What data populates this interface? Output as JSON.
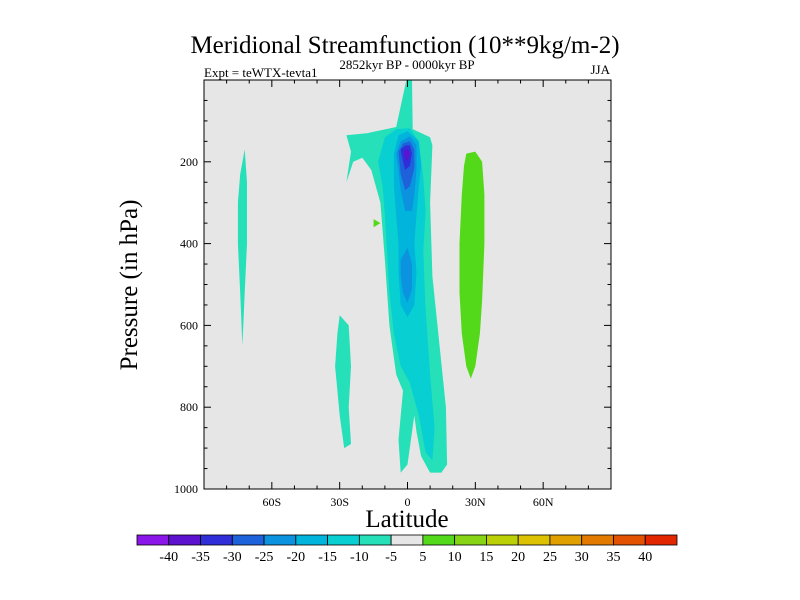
{
  "chart_data": {
    "type": "heatmap",
    "title": "Meridional Streamfunction (10**9kg/m-2)",
    "left_string": "Expt = teWTX-tevta1",
    "center_string": "2852kyr BP - 0000kyr BP",
    "right_string": "JJA",
    "xlabel": "Latitude",
    "ylabel": "Pressure (in hPa)",
    "xlim": [
      -90,
      90
    ],
    "ylim": [
      1000,
      0
    ],
    "x_ticks": [
      -60,
      -30,
      0,
      30,
      60
    ],
    "x_tick_labels": [
      "60S",
      "30S",
      "0",
      "30N",
      "60N"
    ],
    "y_ticks": [
      200,
      400,
      600,
      800,
      1000
    ],
    "y_tick_labels": [
      "200",
      "400",
      "600",
      "800",
      "1000"
    ],
    "background_color": "#e6e6e6",
    "contour_levels": [
      -40,
      -35,
      -30,
      -25,
      -20,
      -15,
      -10,
      -5,
      5,
      10,
      15,
      20,
      25,
      30,
      35,
      40
    ],
    "colorbar_labels": [
      "-40",
      "-35",
      "-30",
      "-25",
      "-20",
      "-15",
      "-10",
      "-5",
      "5",
      "10",
      "15",
      "20",
      "25",
      "30",
      "35",
      "40"
    ],
    "colorbar_colors": [
      "#8b16ea",
      "#5d12cf",
      "#2f2ed8",
      "#1e62db",
      "#0b93df",
      "#00b4dc",
      "#08cfd2",
      "#25e0b8",
      "#e6e6e6",
      "#54d81a",
      "#86d413",
      "#bcd008",
      "#dcc203",
      "#e0a000",
      "#e27a00",
      "#e25200",
      "#e22600"
    ],
    "regions": [
      {
        "name": "far-south-band",
        "value": -7,
        "color": "#25e0b8",
        "points": [
          [
            -72,
            170
          ],
          [
            -71,
            250
          ],
          [
            -71,
            400
          ],
          [
            -72,
            520
          ],
          [
            -73,
            650
          ],
          [
            -74,
            520
          ],
          [
            -75,
            400
          ],
          [
            -75,
            300
          ],
          [
            -74,
            230
          ]
        ]
      },
      {
        "name": "tropical-negative-cell",
        "value": -7,
        "color": "#25e0b8",
        "points": [
          [
            -27,
            135
          ],
          [
            -18,
            130
          ],
          [
            -5,
            115
          ],
          [
            -0.5,
            0
          ],
          [
            2,
            0
          ],
          [
            2.3,
            120
          ],
          [
            10,
            140
          ],
          [
            11,
            160
          ],
          [
            10,
            300
          ],
          [
            11,
            480
          ],
          [
            17,
            800
          ],
          [
            17.5,
            940
          ],
          [
            15,
            960
          ],
          [
            10,
            960
          ],
          [
            6,
            920
          ],
          [
            4,
            860
          ],
          [
            3,
            820
          ],
          [
            0,
            940
          ],
          [
            -3,
            960
          ],
          [
            -4,
            880
          ],
          [
            -2,
            760
          ],
          [
            -5,
            720
          ],
          [
            -8,
            600
          ],
          [
            -10,
            440
          ],
          [
            -12,
            300
          ],
          [
            -16,
            220
          ],
          [
            -20,
            190
          ],
          [
            -24,
            200
          ],
          [
            -27,
            250
          ],
          [
            -25,
            175
          ]
        ]
      },
      {
        "name": "lower-trop-south-band",
        "value": -7,
        "color": "#25e0b8",
        "points": [
          [
            -30,
            575
          ],
          [
            -26,
            600
          ],
          [
            -25,
            700
          ],
          [
            -26,
            800
          ],
          [
            -25,
            890
          ],
          [
            -28,
            900
          ],
          [
            -30,
            820
          ],
          [
            -32,
            700
          ],
          [
            -31,
            620
          ]
        ]
      },
      {
        "name": "cell-level-10",
        "value": -12,
        "color": "#08cfd2",
        "points": [
          [
            -13,
            200
          ],
          [
            -10,
            140
          ],
          [
            -5,
            120
          ],
          [
            1,
            118
          ],
          [
            5,
            150
          ],
          [
            7,
            240
          ],
          [
            8,
            320
          ],
          [
            7,
            420
          ],
          [
            8,
            560
          ],
          [
            10,
            720
          ],
          [
            12,
            850
          ],
          [
            11,
            930
          ],
          [
            8,
            910
          ],
          [
            5,
            820
          ],
          [
            1,
            740
          ],
          [
            -3,
            700
          ],
          [
            -6,
            620
          ],
          [
            -8,
            520
          ],
          [
            -9,
            420
          ],
          [
            -10,
            330
          ],
          [
            -11,
            260
          ]
        ]
      },
      {
        "name": "cell-level-15",
        "value": -17,
        "color": "#00b4dc",
        "points": [
          [
            -6,
            180
          ],
          [
            -4,
            135
          ],
          [
            0,
            125
          ],
          [
            5,
            150
          ],
          [
            6,
            210
          ],
          [
            5,
            260
          ],
          [
            4,
            330
          ],
          [
            3,
            400
          ],
          [
            4,
            470
          ],
          [
            3,
            550
          ],
          [
            0,
            580
          ],
          [
            -3,
            550
          ],
          [
            -4,
            470
          ],
          [
            -4,
            400
          ],
          [
            -5,
            330
          ],
          [
            -6,
            260
          ]
        ]
      },
      {
        "name": "cell-level-20",
        "value": -22,
        "color": "#0b93df",
        "points": [
          [
            -5,
            180
          ],
          [
            -3,
            150
          ],
          [
            1,
            138
          ],
          [
            4,
            160
          ],
          [
            4,
            220
          ],
          [
            3,
            280
          ],
          [
            2,
            320
          ],
          [
            -1,
            320
          ],
          [
            -3,
            270
          ],
          [
            -4,
            220
          ]
        ]
      },
      {
        "name": "cell-level-20-lower",
        "value": -22,
        "color": "#0b93df",
        "points": [
          [
            -3,
            440
          ],
          [
            0,
            410
          ],
          [
            2,
            450
          ],
          [
            2,
            510
          ],
          [
            0,
            545
          ],
          [
            -2,
            520
          ],
          [
            -3,
            480
          ]
        ]
      },
      {
        "name": "cell-level-25",
        "value": -27,
        "color": "#1e62db",
        "points": [
          [
            -4,
            175
          ],
          [
            -2,
            155
          ],
          [
            1,
            150
          ],
          [
            3,
            170
          ],
          [
            3,
            215
          ],
          [
            1,
            260
          ],
          [
            -1,
            270
          ],
          [
            -3,
            230
          ]
        ]
      },
      {
        "name": "cell-level-30",
        "value": -32,
        "color": "#2f2ed8",
        "points": [
          [
            -3,
            170
          ],
          [
            -1,
            160
          ],
          [
            1,
            160
          ],
          [
            2,
            180
          ],
          [
            1,
            210
          ],
          [
            -1,
            220
          ],
          [
            -2,
            200
          ]
        ]
      },
      {
        "name": "cell-core",
        "value": -36,
        "color": "#5d12cf",
        "points": [
          [
            -1.5,
            175
          ],
          [
            0,
            168
          ],
          [
            1,
            180
          ],
          [
            0,
            198
          ],
          [
            -1,
            192
          ]
        ]
      },
      {
        "name": "subtropical-positive-cell",
        "value": 7,
        "color": "#54d81a",
        "points": [
          [
            26,
            180
          ],
          [
            30,
            175
          ],
          [
            33,
            200
          ],
          [
            34,
            280
          ],
          [
            34,
            400
          ],
          [
            33,
            540
          ],
          [
            32,
            620
          ],
          [
            30,
            700
          ],
          [
            28,
            730
          ],
          [
            26,
            700
          ],
          [
            24,
            620
          ],
          [
            23,
            520
          ],
          [
            23,
            400
          ],
          [
            24,
            280
          ],
          [
            25,
            210
          ]
        ]
      },
      {
        "name": "small-positive-patch",
        "value": 7,
        "color": "#54d81a",
        "points": [
          [
            -15,
            340
          ],
          [
            -12,
            350
          ],
          [
            -15,
            360
          ]
        ]
      }
    ]
  }
}
